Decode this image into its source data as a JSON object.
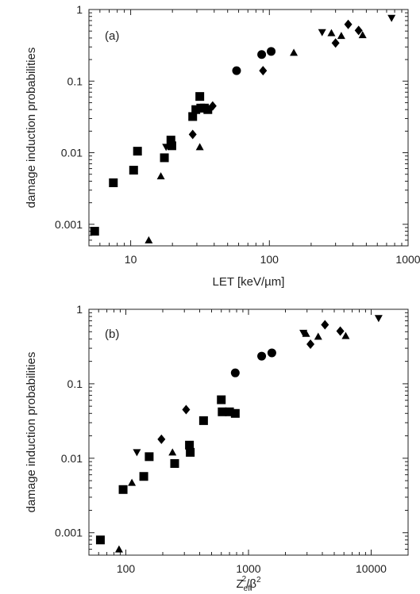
{
  "chart_data": [
    {
      "type": "scatter",
      "panel_label": "(a)",
      "xlabel": "LET [keV/µm]",
      "ylabel": "damage induction probabilities",
      "xscale": "log",
      "yscale": "log",
      "xlim": [
        5,
        1000
      ],
      "ylim": [
        0.0005,
        1
      ],
      "xticks": [
        10,
        100,
        1000
      ],
      "xtick_labels": [
        "10",
        "100",
        "1000"
      ],
      "yticks": [
        0.001,
        0.01,
        0.1,
        1
      ],
      "ytick_labels": [
        "0.001",
        "0.01",
        "0.1",
        "1"
      ],
      "grid": false,
      "series": [
        {
          "marker": "square",
          "points": [
            [
              5.5,
              0.0008
            ],
            [
              7.5,
              0.0038
            ],
            [
              10.5,
              0.0057
            ],
            [
              11.2,
              0.0105
            ],
            [
              17.5,
              0.0085
            ],
            [
              19.5,
              0.015
            ],
            [
              19.8,
              0.0125
            ],
            [
              28,
              0.032
            ],
            [
              29.5,
              0.04
            ],
            [
              31.5,
              0.061
            ],
            [
              32,
              0.042
            ],
            [
              34,
              0.042
            ],
            [
              36,
              0.04
            ]
          ]
        },
        {
          "marker": "triangle-up",
          "points": [
            [
              13.5,
              0.0006
            ],
            [
              16.5,
              0.0047
            ],
            [
              31.5,
              0.012
            ],
            [
              150,
              0.25
            ],
            [
              280,
              0.47
            ],
            [
              330,
              0.43
            ],
            [
              470,
              0.44
            ]
          ]
        },
        {
          "marker": "triangle-down",
          "points": [
            [
              18,
              0.012
            ],
            [
              240,
              0.48
            ],
            [
              760,
              0.76
            ]
          ]
        },
        {
          "marker": "diamond",
          "points": [
            [
              28,
              0.018
            ],
            [
              39,
              0.045
            ],
            [
              90,
              0.14
            ],
            [
              300,
              0.34
            ],
            [
              370,
              0.62
            ],
            [
              440,
              0.51
            ]
          ]
        },
        {
          "marker": "circle",
          "points": [
            [
              58,
              0.14
            ],
            [
              88,
              0.235
            ],
            [
              103,
              0.26
            ]
          ]
        }
      ]
    },
    {
      "type": "scatter",
      "panel_label": "(b)",
      "xlabel_main": "Z",
      "xlabel_sub": "eff",
      "xlabel_sup": "2",
      "xlabel_tail": "/β",
      "xlabel_tail_sup": "2",
      "ylabel": "damage induction probabilities",
      "xscale": "log",
      "yscale": "log",
      "xlim": [
        50,
        20000
      ],
      "ylim": [
        0.0005,
        1
      ],
      "xticks": [
        100,
        1000,
        10000
      ],
      "xtick_labels": [
        "100",
        "1000",
        "10000"
      ],
      "yticks": [
        0.001,
        0.01,
        0.1,
        1
      ],
      "ytick_labels": [
        "0.001",
        "0.01",
        "0.1",
        "1"
      ],
      "grid": false,
      "series": [
        {
          "marker": "square",
          "points": [
            [
              62,
              0.0008
            ],
            [
              95,
              0.0038
            ],
            [
              140,
              0.0057
            ],
            [
              155,
              0.0105
            ],
            [
              250,
              0.0085
            ],
            [
              330,
              0.015
            ],
            [
              335,
              0.012
            ],
            [
              430,
              0.032
            ],
            [
              600,
              0.061
            ],
            [
              610,
              0.042
            ],
            [
              700,
              0.042
            ],
            [
              780,
              0.04
            ]
          ]
        },
        {
          "marker": "triangle-up",
          "points": [
            [
              88,
              0.0006
            ],
            [
              112,
              0.0047
            ],
            [
              240,
              0.012
            ],
            [
              2950,
              0.47
            ],
            [
              3700,
              0.43
            ],
            [
              6200,
              0.44
            ]
          ]
        },
        {
          "marker": "triangle-down",
          "points": [
            [
              123,
              0.012
            ],
            [
              2800,
              0.48
            ],
            [
              11500,
              0.76
            ]
          ]
        },
        {
          "marker": "diamond",
          "points": [
            [
              195,
              0.018
            ],
            [
              310,
              0.045
            ],
            [
              3200,
              0.34
            ],
            [
              4200,
              0.62
            ],
            [
              5600,
              0.51
            ]
          ]
        },
        {
          "marker": "circle",
          "points": [
            [
              780,
              0.14
            ],
            [
              1280,
              0.235
            ],
            [
              1550,
              0.26
            ]
          ]
        }
      ]
    }
  ]
}
